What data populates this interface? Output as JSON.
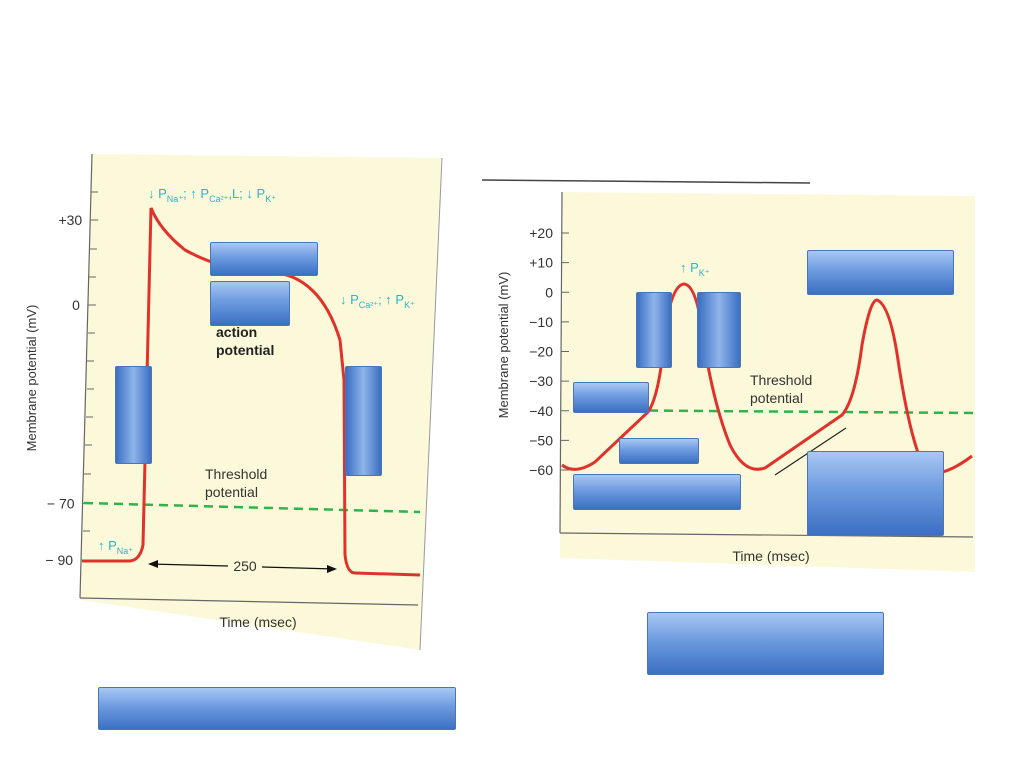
{
  "left_chart": {
    "ylabel": "Membrane potential (mV)",
    "xlabel": "Time (msec)",
    "ticks": [
      {
        "label": "+30",
        "mv": 30
      },
      {
        "label": "0",
        "mv": 0
      },
      {
        "label": "− 70",
        "mv": -70
      },
      {
        "label": "− 90",
        "mv": -90
      }
    ],
    "threshold_label": [
      "Threshold",
      "potential"
    ],
    "duration_label": "250",
    "center_label": [
      "action",
      "potential"
    ],
    "annotation_peak": "↓ Pₙₐ⁺; ↑ Pᴄₐ²⁺,L; ↓ Pₖ⁺",
    "annotation_peak_parts": {
      "a": "↓ P",
      "a_sub": "Na⁺",
      "b": "; ↑ P",
      "b_sub": "Ca²⁺",
      "c": ",L; ↓ P",
      "c_sub": "K⁺"
    },
    "annotation_repol": {
      "a": "↓ P",
      "a_sub": "Ca²⁺",
      "b": "; ↑ P",
      "b_sub": "K⁺"
    },
    "annotation_rise": {
      "a": "↑ P",
      "a_sub": "Na⁺"
    }
  },
  "right_chart": {
    "ylabel": "Membrane potential (mV)",
    "xlabel": "Time (msec)",
    "ticks": [
      {
        "label": "+20",
        "mv": 20
      },
      {
        "label": "+10",
        "mv": 10
      },
      {
        "label": "0",
        "mv": 0
      },
      {
        "label": "−10",
        "mv": -10
      },
      {
        "label": "−20",
        "mv": -20
      },
      {
        "label": "−30",
        "mv": -30
      },
      {
        "label": "−40",
        "mv": -40
      },
      {
        "label": "−50",
        "mv": -50
      },
      {
        "label": "−60",
        "mv": -60
      }
    ],
    "threshold_label": [
      "Threshold",
      "potential"
    ],
    "annotation_peak": {
      "a": "↑ P",
      "a_sub": "K⁺"
    }
  },
  "colors": {
    "panel_bg": "#fbf9d9",
    "trace": "#e0322b",
    "threshold": "#2fb34a",
    "annotation": "#2ab5c8",
    "axis": "#555555"
  }
}
